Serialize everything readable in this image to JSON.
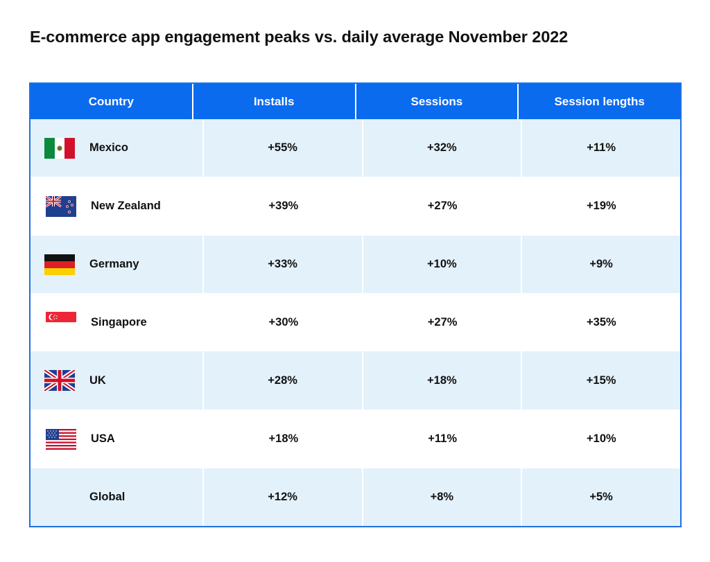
{
  "title": "E-commerce app engagement peaks vs. daily average November 2022",
  "chart_data": {
    "type": "table",
    "title": "E-commerce app engagement peaks vs. daily average November 2022",
    "columns": [
      "Country",
      "Installs",
      "Sessions",
      "Session lengths"
    ],
    "rows": [
      {
        "country": "Mexico",
        "flag": "mexico-flag-icon",
        "installs": "+55%",
        "sessions": "+32%",
        "session_lengths": "+11%"
      },
      {
        "country": "New Zealand",
        "flag": "new-zealand-flag-icon",
        "installs": "+39%",
        "sessions": "+27%",
        "session_lengths": "+19%"
      },
      {
        "country": "Germany",
        "flag": "germany-flag-icon",
        "installs": "+33%",
        "sessions": "+10%",
        "session_lengths": "+9%"
      },
      {
        "country": "Singapore",
        "flag": "singapore-flag-icon",
        "installs": "+30%",
        "sessions": "+27%",
        "session_lengths": "+35%"
      },
      {
        "country": "UK",
        "flag": "uk-flag-icon",
        "installs": "+28%",
        "sessions": "+18%",
        "session_lengths": "+15%"
      },
      {
        "country": "USA",
        "flag": "usa-flag-icon",
        "installs": "+18%",
        "sessions": "+11%",
        "session_lengths": "+10%"
      },
      {
        "country": "Global",
        "flag": "",
        "installs": "+12%",
        "sessions": "+8%",
        "session_lengths": "+5%"
      }
    ]
  },
  "colors": {
    "header": "#0a6bef",
    "border": "#1f6fe5",
    "row_shaded": "#e3f1fa",
    "row_plain": "#ffffff"
  }
}
